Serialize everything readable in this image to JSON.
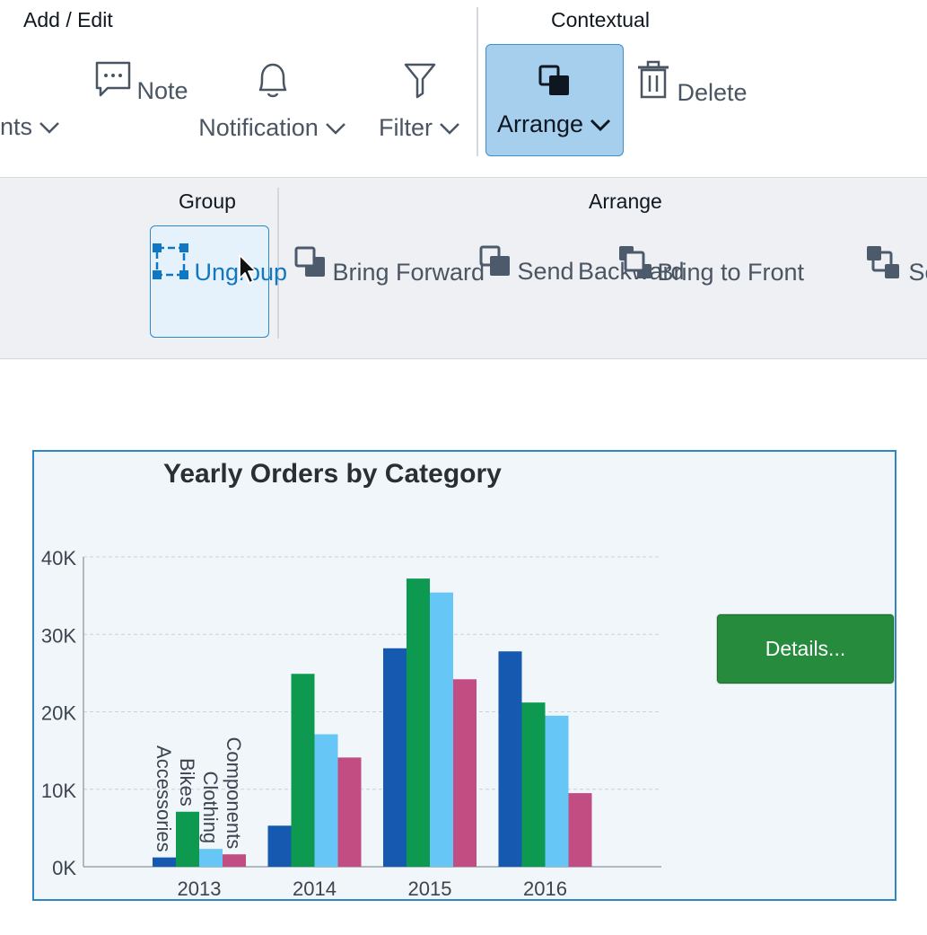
{
  "ribbon": {
    "group_add_edit": "Add / Edit",
    "group_contextual": "Contextual",
    "buttons": {
      "elements": "nts",
      "note": "Note",
      "notification": "Notification",
      "filter": "Filter",
      "arrange": "Arrange",
      "delete": "Delete"
    }
  },
  "subribbon": {
    "group_group": "Group",
    "group_arrange": "Arrange",
    "ungroup": "Ungroup",
    "bring_forward": "Bring Forward",
    "send_backward_line1": "Send",
    "send_backward_line2": "Backward",
    "bring_to_front": "Bring to Front",
    "send_to_back": "Send to Ba"
  },
  "dashboard": {
    "details_button": "Details..."
  },
  "chart_data": {
    "type": "bar",
    "title": "Yearly Orders by Category",
    "categories": [
      "2013",
      "2014",
      "2015",
      "2016"
    ],
    "series": [
      {
        "name": "Accessories",
        "values": [
          1200,
          5300,
          28200,
          27800
        ],
        "color": "#1559b1"
      },
      {
        "name": "Bikes",
        "values": [
          7100,
          24900,
          37200,
          21200
        ],
        "color": "#0d9a50"
      },
      {
        "name": "Clothing",
        "values": [
          2300,
          17100,
          35400,
          19500
        ],
        "color": "#66c7f7"
      },
      {
        "name": "Components",
        "values": [
          1600,
          14100,
          24200,
          9500
        ],
        "color": "#c24d83"
      }
    ],
    "yticks": [
      "0K",
      "10K",
      "20K",
      "30K",
      "40K"
    ],
    "ylim": [
      0,
      40000
    ],
    "grid": true
  },
  "icons": {
    "note": "note-icon",
    "notification": "bell-icon",
    "filter": "filter-icon",
    "arrange": "arrange-icon",
    "delete": "trash-icon",
    "ungroup": "ungroup-icon",
    "bring_forward": "bring-forward-icon",
    "send_backward": "send-backward-icon",
    "bring_to_front": "bring-to-front-icon",
    "send_to_back": "send-to-back-icon",
    "cursor": "cursor-icon"
  }
}
